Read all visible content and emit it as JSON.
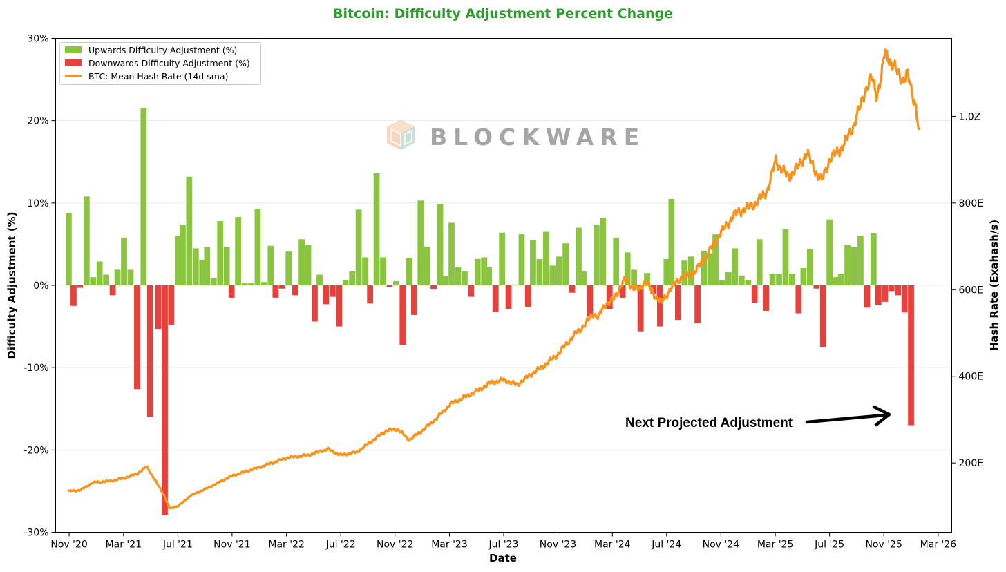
{
  "chart_data": {
    "type": "bar+line",
    "title": "Bitcoin: Difficulty Adjustment Percent Change",
    "title_color": "#2e9b2e",
    "xlabel": "Date",
    "ylabel_left": "Difficulty Adjustment (%)",
    "ylabel_right": "Hash Rate (Exahash/s)",
    "x_range": [
      2020.75,
      2026.25
    ],
    "y_left_range": [
      -30,
      30
    ],
    "y_right_range": [
      40,
      1180
    ],
    "x_ticks": [
      {
        "label": "Nov '20",
        "value": 2020.833
      },
      {
        "label": "Mar '21",
        "value": 2021.167
      },
      {
        "label": "Jul '21",
        "value": 2021.5
      },
      {
        "label": "Nov '21",
        "value": 2021.833
      },
      {
        "label": "Mar '22",
        "value": 2022.167
      },
      {
        "label": "Jul '22",
        "value": 2022.5
      },
      {
        "label": "Nov '22",
        "value": 2022.833
      },
      {
        "label": "Mar '23",
        "value": 2023.167
      },
      {
        "label": "Jul '23",
        "value": 2023.5
      },
      {
        "label": "Nov '23",
        "value": 2023.833
      },
      {
        "label": "Mar '24",
        "value": 2024.167
      },
      {
        "label": "Jul '24",
        "value": 2024.5
      },
      {
        "label": "Nov '24",
        "value": 2024.833
      },
      {
        "label": "Mar '25",
        "value": 2025.167
      },
      {
        "label": "Jul '25",
        "value": 2025.5
      },
      {
        "label": "Nov '25",
        "value": 2025.833
      },
      {
        "label": "Mar '26",
        "value": 2026.167
      }
    ],
    "y_left_ticks": [
      {
        "label": "30%",
        "value": 30
      },
      {
        "label": "20%",
        "value": 20
      },
      {
        "label": "10%",
        "value": 10
      },
      {
        "label": "0%",
        "value": 0
      },
      {
        "label": "-10%",
        "value": -10
      },
      {
        "label": "-20%",
        "value": -20
      },
      {
        "label": "-30%",
        "value": -30
      }
    ],
    "y_right_ticks": [
      {
        "label": "1.0Z",
        "value": 1000
      },
      {
        "label": "800E",
        "value": 800
      },
      {
        "label": "600E",
        "value": 600
      },
      {
        "label": "400E",
        "value": 400
      },
      {
        "label": "200E",
        "value": 200
      }
    ],
    "legend": [
      {
        "label": "Upwards Difficulty Adjustment (%)",
        "type": "patch",
        "color": "#8bc53f"
      },
      {
        "label": "Downwards Difficulty Adjustment (%)",
        "type": "patch",
        "color": "#e8413c"
      },
      {
        "label": "BTC: Mean Hash Rate (14d sma)",
        "type": "line",
        "color": "#f7931a"
      }
    ],
    "colors": {
      "up": "#8bc53f",
      "down": "#e8413c",
      "line": "#f7931a"
    },
    "annotation": {
      "text": "Next Projected Adjustment"
    },
    "watermark": {
      "text": "BLOCKWARE"
    },
    "difficulty_adjustments": [
      {
        "t": 2020.83,
        "v": 8.8
      },
      {
        "t": 2020.86,
        "v": -2.5
      },
      {
        "t": 2020.9,
        "v": -0.3
      },
      {
        "t": 2020.94,
        "v": 10.8
      },
      {
        "t": 2020.98,
        "v": 1.0
      },
      {
        "t": 2021.02,
        "v": 2.9
      },
      {
        "t": 2021.06,
        "v": 1.3
      },
      {
        "t": 2021.1,
        "v": -1.2
      },
      {
        "t": 2021.13,
        "v": 1.9
      },
      {
        "t": 2021.17,
        "v": 5.8
      },
      {
        "t": 2021.21,
        "v": 1.9
      },
      {
        "t": 2021.25,
        "v": -12.6
      },
      {
        "t": 2021.29,
        "v": 21.5
      },
      {
        "t": 2021.33,
        "v": -16.0
      },
      {
        "t": 2021.38,
        "v": -5.3
      },
      {
        "t": 2021.42,
        "v": -27.9
      },
      {
        "t": 2021.46,
        "v": -4.8
      },
      {
        "t": 2021.5,
        "v": 6.0
      },
      {
        "t": 2021.53,
        "v": 7.3
      },
      {
        "t": 2021.57,
        "v": 13.2
      },
      {
        "t": 2021.61,
        "v": 4.5
      },
      {
        "t": 2021.65,
        "v": 3.1
      },
      {
        "t": 2021.68,
        "v": 4.7
      },
      {
        "t": 2021.72,
        "v": 0.9
      },
      {
        "t": 2021.76,
        "v": 7.8
      },
      {
        "t": 2021.8,
        "v": 4.7
      },
      {
        "t": 2021.83,
        "v": -1.5
      },
      {
        "t": 2021.87,
        "v": 8.3
      },
      {
        "t": 2021.91,
        "v": 0.3
      },
      {
        "t": 2021.95,
        "v": 0.3
      },
      {
        "t": 2021.99,
        "v": 9.3
      },
      {
        "t": 2022.03,
        "v": 0.4
      },
      {
        "t": 2022.07,
        "v": 4.8
      },
      {
        "t": 2022.1,
        "v": -1.5
      },
      {
        "t": 2022.14,
        "v": -0.4
      },
      {
        "t": 2022.18,
        "v": 4.1
      },
      {
        "t": 2022.22,
        "v": -1.2
      },
      {
        "t": 2022.26,
        "v": 5.6
      },
      {
        "t": 2022.3,
        "v": 4.9
      },
      {
        "t": 2022.34,
        "v": -4.4
      },
      {
        "t": 2022.37,
        "v": 1.3
      },
      {
        "t": 2022.41,
        "v": -2.3
      },
      {
        "t": 2022.45,
        "v": -1.4
      },
      {
        "t": 2022.49,
        "v": -5.0
      },
      {
        "t": 2022.53,
        "v": 0.6
      },
      {
        "t": 2022.57,
        "v": 1.7
      },
      {
        "t": 2022.61,
        "v": 9.2
      },
      {
        "t": 2022.65,
        "v": 3.4
      },
      {
        "t": 2022.68,
        "v": -2.2
      },
      {
        "t": 2022.72,
        "v": 13.6
      },
      {
        "t": 2022.76,
        "v": 3.4
      },
      {
        "t": 2022.8,
        "v": -0.2
      },
      {
        "t": 2022.84,
        "v": 0.5
      },
      {
        "t": 2022.88,
        "v": -7.3
      },
      {
        "t": 2022.92,
        "v": 3.3
      },
      {
        "t": 2022.95,
        "v": -3.6
      },
      {
        "t": 2022.99,
        "v": 10.3
      },
      {
        "t": 2023.03,
        "v": 4.7
      },
      {
        "t": 2023.07,
        "v": -0.5
      },
      {
        "t": 2023.11,
        "v": 9.9
      },
      {
        "t": 2023.14,
        "v": 1.1
      },
      {
        "t": 2023.18,
        "v": 7.6
      },
      {
        "t": 2023.22,
        "v": 2.2
      },
      {
        "t": 2023.26,
        "v": 1.7
      },
      {
        "t": 2023.3,
        "v": -1.4
      },
      {
        "t": 2023.34,
        "v": 3.2
      },
      {
        "t": 2023.38,
        "v": 3.4
      },
      {
        "t": 2023.41,
        "v": 2.2
      },
      {
        "t": 2023.45,
        "v": -3.2
      },
      {
        "t": 2023.49,
        "v": 6.4
      },
      {
        "t": 2023.53,
        "v": -2.9
      },
      {
        "t": 2023.57,
        "v": 0.1
      },
      {
        "t": 2023.61,
        "v": 6.2
      },
      {
        "t": 2023.65,
        "v": -2.6
      },
      {
        "t": 2023.68,
        "v": 5.5
      },
      {
        "t": 2023.72,
        "v": 3.2
      },
      {
        "t": 2023.76,
        "v": 6.5
      },
      {
        "t": 2023.8,
        "v": 2.4
      },
      {
        "t": 2023.84,
        "v": 3.5
      },
      {
        "t": 2023.88,
        "v": 5.1
      },
      {
        "t": 2023.92,
        "v": -0.9
      },
      {
        "t": 2023.96,
        "v": 7.0
      },
      {
        "t": 2023.99,
        "v": 1.7
      },
      {
        "t": 2024.03,
        "v": -3.8
      },
      {
        "t": 2024.07,
        "v": 7.3
      },
      {
        "t": 2024.11,
        "v": 8.2
      },
      {
        "t": 2024.15,
        "v": -2.9
      },
      {
        "t": 2024.19,
        "v": 5.8
      },
      {
        "t": 2024.23,
        "v": -1.5
      },
      {
        "t": 2024.26,
        "v": 4.0
      },
      {
        "t": 2024.3,
        "v": 1.9
      },
      {
        "t": 2024.34,
        "v": -5.6
      },
      {
        "t": 2024.38,
        "v": 1.5
      },
      {
        "t": 2024.42,
        "v": -1.0
      },
      {
        "t": 2024.46,
        "v": -5.0
      },
      {
        "t": 2024.5,
        "v": 3.2
      },
      {
        "t": 2024.53,
        "v": 10.5
      },
      {
        "t": 2024.57,
        "v": -4.2
      },
      {
        "t": 2024.61,
        "v": 3.0
      },
      {
        "t": 2024.65,
        "v": 3.5
      },
      {
        "t": 2024.69,
        "v": -4.6
      },
      {
        "t": 2024.73,
        "v": 4.2
      },
      {
        "t": 2024.77,
        "v": 3.9
      },
      {
        "t": 2024.8,
        "v": 6.2
      },
      {
        "t": 2024.84,
        "v": 0.6
      },
      {
        "t": 2024.88,
        "v": 1.6
      },
      {
        "t": 2024.92,
        "v": 4.5
      },
      {
        "t": 2024.96,
        "v": 1.2
      },
      {
        "t": 2025.0,
        "v": 0.6
      },
      {
        "t": 2025.04,
        "v": -2.1
      },
      {
        "t": 2025.07,
        "v": 5.6
      },
      {
        "t": 2025.11,
        "v": -3.1
      },
      {
        "t": 2025.15,
        "v": 1.4
      },
      {
        "t": 2025.19,
        "v": 1.4
      },
      {
        "t": 2025.23,
        "v": 6.8
      },
      {
        "t": 2025.27,
        "v": 1.4
      },
      {
        "t": 2025.31,
        "v": -3.4
      },
      {
        "t": 2025.34,
        "v": 2.1
      },
      {
        "t": 2025.38,
        "v": 4.4
      },
      {
        "t": 2025.42,
        "v": -0.4
      },
      {
        "t": 2025.46,
        "v": -7.5
      },
      {
        "t": 2025.5,
        "v": 8.0
      },
      {
        "t": 2025.54,
        "v": 1.0
      },
      {
        "t": 2025.57,
        "v": 1.4
      },
      {
        "t": 2025.61,
        "v": 4.9
      },
      {
        "t": 2025.65,
        "v": 4.7
      },
      {
        "t": 2025.69,
        "v": 6.0
      },
      {
        "t": 2025.73,
        "v": -2.7
      },
      {
        "t": 2025.77,
        "v": 6.3
      },
      {
        "t": 2025.8,
        "v": -2.4
      },
      {
        "t": 2025.84,
        "v": -2.0
      },
      {
        "t": 2025.88,
        "v": -0.7
      },
      {
        "t": 2025.92,
        "v": -1.2
      },
      {
        "t": 2025.96,
        "v": -3.3
      },
      {
        "t": 2026.0,
        "v": -17.0
      }
    ],
    "hash_rate_keypoints": [
      {
        "t": 2020.83,
        "v": 135
      },
      {
        "t": 2020.9,
        "v": 137
      },
      {
        "t": 2020.98,
        "v": 155
      },
      {
        "t": 2021.08,
        "v": 158
      },
      {
        "t": 2021.17,
        "v": 165
      },
      {
        "t": 2021.25,
        "v": 175
      },
      {
        "t": 2021.31,
        "v": 192
      },
      {
        "t": 2021.36,
        "v": 160
      },
      {
        "t": 2021.41,
        "v": 130
      },
      {
        "t": 2021.45,
        "v": 95
      },
      {
        "t": 2021.5,
        "v": 100
      },
      {
        "t": 2021.58,
        "v": 125
      },
      {
        "t": 2021.67,
        "v": 140
      },
      {
        "t": 2021.83,
        "v": 170
      },
      {
        "t": 2022.0,
        "v": 190
      },
      {
        "t": 2022.17,
        "v": 212
      },
      {
        "t": 2022.3,
        "v": 218
      },
      {
        "t": 2022.42,
        "v": 232
      },
      {
        "t": 2022.5,
        "v": 218
      },
      {
        "t": 2022.6,
        "v": 225
      },
      {
        "t": 2022.67,
        "v": 245
      },
      {
        "t": 2022.78,
        "v": 275
      },
      {
        "t": 2022.85,
        "v": 278
      },
      {
        "t": 2022.92,
        "v": 253
      },
      {
        "t": 2023.0,
        "v": 275
      },
      {
        "t": 2023.08,
        "v": 300
      },
      {
        "t": 2023.17,
        "v": 335
      },
      {
        "t": 2023.25,
        "v": 350
      },
      {
        "t": 2023.33,
        "v": 365
      },
      {
        "t": 2023.42,
        "v": 385
      },
      {
        "t": 2023.5,
        "v": 392
      },
      {
        "t": 2023.58,
        "v": 380
      },
      {
        "t": 2023.67,
        "v": 405
      },
      {
        "t": 2023.75,
        "v": 425
      },
      {
        "t": 2023.83,
        "v": 450
      },
      {
        "t": 2023.92,
        "v": 490
      },
      {
        "t": 2024.0,
        "v": 520
      },
      {
        "t": 2024.05,
        "v": 545
      },
      {
        "t": 2024.08,
        "v": 535
      },
      {
        "t": 2024.12,
        "v": 565
      },
      {
        "t": 2024.17,
        "v": 575
      },
      {
        "t": 2024.22,
        "v": 610
      },
      {
        "t": 2024.25,
        "v": 625
      },
      {
        "t": 2024.29,
        "v": 605
      },
      {
        "t": 2024.33,
        "v": 600
      },
      {
        "t": 2024.37,
        "v": 620
      },
      {
        "t": 2024.42,
        "v": 590
      },
      {
        "t": 2024.47,
        "v": 570
      },
      {
        "t": 2024.52,
        "v": 600
      },
      {
        "t": 2024.58,
        "v": 625
      },
      {
        "t": 2024.67,
        "v": 640
      },
      {
        "t": 2024.75,
        "v": 680
      },
      {
        "t": 2024.83,
        "v": 730
      },
      {
        "t": 2024.92,
        "v": 775
      },
      {
        "t": 2025.0,
        "v": 790
      },
      {
        "t": 2025.05,
        "v": 800
      },
      {
        "t": 2025.12,
        "v": 830
      },
      {
        "t": 2025.17,
        "v": 900
      },
      {
        "t": 2025.2,
        "v": 880
      },
      {
        "t": 2025.25,
        "v": 860
      },
      {
        "t": 2025.3,
        "v": 880
      },
      {
        "t": 2025.36,
        "v": 915
      },
      {
        "t": 2025.42,
        "v": 870
      },
      {
        "t": 2025.45,
        "v": 850
      },
      {
        "t": 2025.5,
        "v": 900
      },
      {
        "t": 2025.58,
        "v": 930
      },
      {
        "t": 2025.65,
        "v": 980
      },
      {
        "t": 2025.72,
        "v": 1060
      },
      {
        "t": 2025.76,
        "v": 1090
      },
      {
        "t": 2025.79,
        "v": 1050
      },
      {
        "t": 2025.82,
        "v": 1095
      },
      {
        "t": 2025.84,
        "v": 1150
      },
      {
        "t": 2025.87,
        "v": 1130
      },
      {
        "t": 2025.91,
        "v": 1105
      },
      {
        "t": 2025.95,
        "v": 1085
      },
      {
        "t": 2025.98,
        "v": 1095
      },
      {
        "t": 2026.01,
        "v": 1050
      },
      {
        "t": 2026.03,
        "v": 1025
      },
      {
        "t": 2026.05,
        "v": 955
      }
    ]
  }
}
